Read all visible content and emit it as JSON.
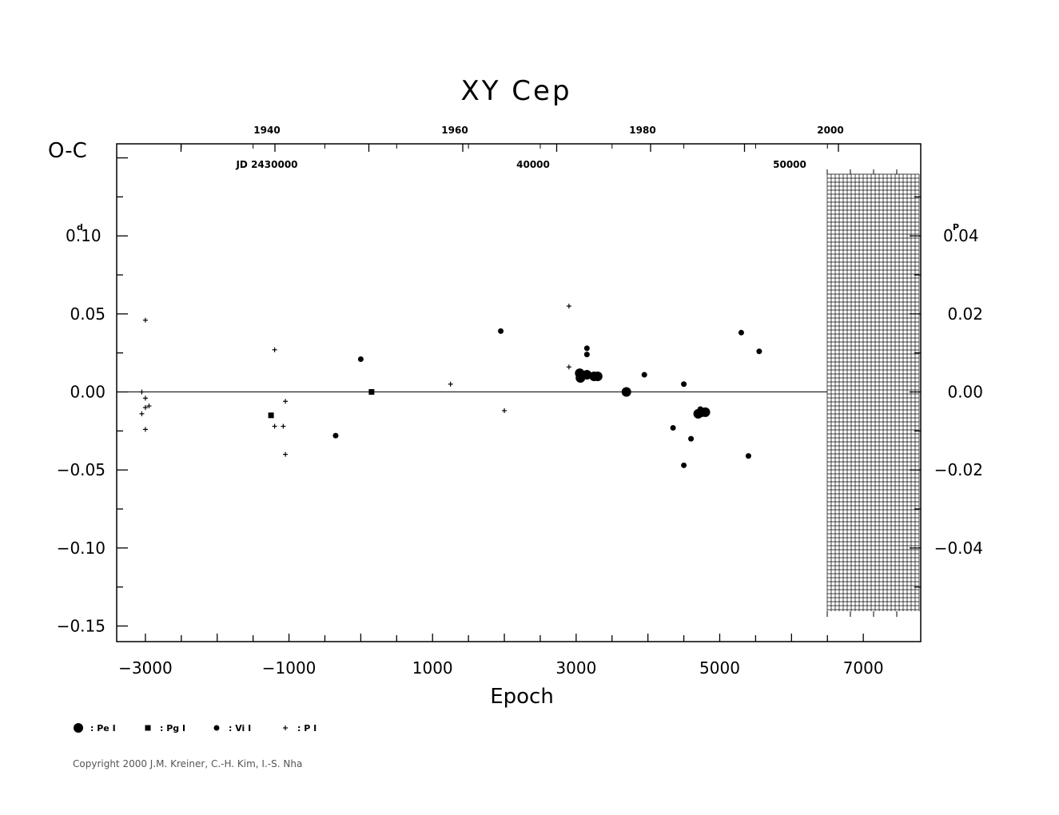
{
  "chart_data": {
    "type": "scatter",
    "title": "XY Cep",
    "xlabel": "Epoch",
    "ylabel": "O-C",
    "xlim": [
      -3400,
      7800
    ],
    "ylim": [
      -0.16,
      0.159
    ],
    "x_ticks": [
      "−3000",
      "−1000",
      "1000",
      "3000",
      "5000",
      "7000"
    ],
    "y_ticks": [
      "0.10",
      "0.05",
      "0.00",
      "−0.05",
      "−0.10",
      "−0.15"
    ],
    "y_unit_mark": "d",
    "y_top_tick_prefix": "0",
    "y_top_tick_suffix": ".10",
    "right_ticks": [
      "0.02",
      "0.00",
      "−0.02",
      "−0.04"
    ],
    "right_top_prefix": "0",
    "right_top_suffix": ".04",
    "right_unit_mark": "P",
    "year_ticks": [
      "1940",
      "1960",
      "1980",
      "2000"
    ],
    "jd_labels": [
      "JD  2430000",
      "40000",
      "50000"
    ],
    "grid": false,
    "hatched_region_epoch": [
      6500,
      7800
    ],
    "series": [
      {
        "name": ": Pe I",
        "marker": "large-circle",
        "points": [
          [
            3050,
            0.012
          ],
          [
            3060,
            0.009
          ],
          [
            3150,
            0.011
          ],
          [
            3250,
            0.01
          ],
          [
            3300,
            0.01
          ],
          [
            3700,
            0.0
          ],
          [
            4700,
            -0.014
          ],
          [
            4800,
            -0.013
          ],
          [
            4750,
            -0.013
          ]
        ]
      },
      {
        "name": ": Pg I",
        "marker": "square",
        "points": [
          [
            -1250,
            -0.015
          ],
          [
            150,
            0.0
          ]
        ]
      },
      {
        "name": ": Vi I",
        "marker": "small-circle",
        "points": [
          [
            -350,
            -0.028
          ],
          [
            0,
            0.021
          ],
          [
            1950,
            0.039
          ],
          [
            3150,
            0.028
          ],
          [
            3150,
            0.024
          ],
          [
            3950,
            0.011
          ],
          [
            4350,
            -0.023
          ],
          [
            4500,
            -0.047
          ],
          [
            4500,
            0.005
          ],
          [
            4600,
            -0.03
          ],
          [
            5300,
            0.038
          ],
          [
            5400,
            -0.041
          ],
          [
            5550,
            0.026
          ],
          [
            4730,
            -0.011
          ]
        ]
      },
      {
        "name": ": P I",
        "marker": "plus",
        "points": [
          [
            -3000,
            0.046
          ],
          [
            -3050,
            0.0
          ],
          [
            -3000,
            -0.004
          ],
          [
            -3000,
            -0.01
          ],
          [
            -2950,
            -0.009
          ],
          [
            -3050,
            -0.014
          ],
          [
            -3000,
            -0.024
          ],
          [
            -1200,
            0.027
          ],
          [
            -1200,
            -0.022
          ],
          [
            -1080,
            -0.022
          ],
          [
            -1050,
            -0.006
          ],
          [
            -1050,
            -0.04
          ],
          [
            1250,
            0.005
          ],
          [
            2000,
            -0.012
          ],
          [
            2900,
            0.055
          ],
          [
            2900,
            0.016
          ]
        ]
      }
    ]
  },
  "copyright": "Copyright 2000 J.M. Kreiner, C.-H. Kim, I.-S. Nha"
}
